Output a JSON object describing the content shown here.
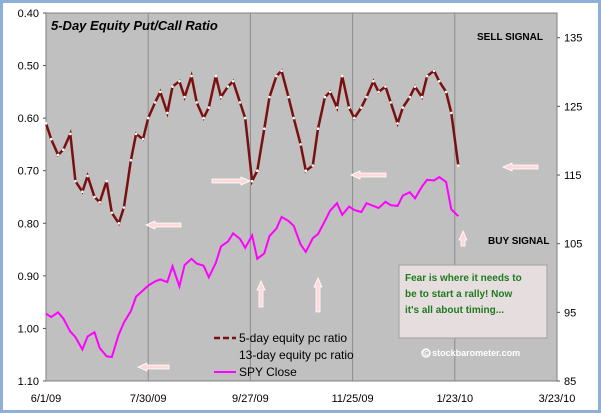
{
  "chart_data": {
    "type": "line",
    "title": "5-Day Equity Put/Call Ratio",
    "x_ticks": [
      "6/1/09",
      "7/30/09",
      "9/27/09",
      "11/25/09",
      "1/23/10",
      "3/23/10"
    ],
    "y_left": {
      "ticks": [
        "0.40",
        "0.50",
        "0.60",
        "0.70",
        "0.80",
        "0.90",
        "1.00",
        "1.10"
      ],
      "ylim": [
        1.1,
        0.4
      ],
      "inverted": true
    },
    "y_right": {
      "ticks": [
        "135",
        "125",
        "115",
        "105",
        "95",
        "85"
      ],
      "ylim": [
        85,
        138.6
      ]
    },
    "grid": "vertical",
    "annotations": {
      "sell": "SELL SIGNAL",
      "buy": "BUY SIGNAL",
      "source": "© stockbarometer.com"
    },
    "note_lines": [
      "Fear is where it needs to",
      "be to start a rally!  Now",
      "it's all about timing..."
    ],
    "legend_entries": [
      "5-day equity pc ratio",
      "13-day equity pc ratio",
      "SPY Close"
    ],
    "colors": {
      "pc": "#7a0f0f",
      "spy": "#ff00ff",
      "plot_bg": "#c0c0c0",
      "note_bg": "#e6dede",
      "arrow": "#ffd9d9"
    },
    "series": [
      {
        "name": "5-day equity pc ratio",
        "axis": "left",
        "x": [
          "2009-06-01",
          "2009-06-04",
          "2009-06-08",
          "2009-06-11",
          "2009-06-15",
          "2009-06-18",
          "2009-06-22",
          "2009-06-25",
          "2009-06-29",
          "2009-07-02",
          "2009-07-06",
          "2009-07-09",
          "2009-07-13",
          "2009-07-16",
          "2009-07-20",
          "2009-07-23",
          "2009-07-27",
          "2009-07-30",
          "2009-08-03",
          "2009-08-06",
          "2009-08-10",
          "2009-08-13",
          "2009-08-17",
          "2009-08-20",
          "2009-08-24",
          "2009-08-27",
          "2009-08-31",
          "2009-09-03",
          "2009-09-07",
          "2009-09-10",
          "2009-09-14",
          "2009-09-17",
          "2009-09-21",
          "2009-09-24",
          "2009-09-28",
          "2009-10-01",
          "2009-10-05",
          "2009-10-08",
          "2009-10-12",
          "2009-10-15",
          "2009-10-19",
          "2009-10-22",
          "2009-10-26",
          "2009-10-29",
          "2009-11-02",
          "2009-11-05",
          "2009-11-09",
          "2009-11-12",
          "2009-11-16",
          "2009-11-19",
          "2009-11-23",
          "2009-11-26",
          "2009-11-30",
          "2009-12-03",
          "2009-12-07",
          "2009-12-10",
          "2009-12-14",
          "2009-12-17",
          "2009-12-21",
          "2009-12-24",
          "2009-12-28",
          "2009-12-31",
          "2010-01-04",
          "2010-01-07",
          "2010-01-11",
          "2010-01-14",
          "2010-01-18",
          "2010-01-21",
          "2010-01-25"
        ],
        "values": [
          0.61,
          0.64,
          0.67,
          0.66,
          0.63,
          0.72,
          0.74,
          0.71,
          0.75,
          0.76,
          0.72,
          0.78,
          0.8,
          0.77,
          0.68,
          0.63,
          0.64,
          0.6,
          0.57,
          0.55,
          0.59,
          0.54,
          0.53,
          0.56,
          0.52,
          0.57,
          0.6,
          0.58,
          0.52,
          0.56,
          0.54,
          0.53,
          0.57,
          0.6,
          0.72,
          0.7,
          0.62,
          0.56,
          0.52,
          0.51,
          0.56,
          0.6,
          0.65,
          0.7,
          0.69,
          0.62,
          0.56,
          0.55,
          0.58,
          0.52,
          0.58,
          0.6,
          0.58,
          0.56,
          0.53,
          0.55,
          0.54,
          0.57,
          0.61,
          0.58,
          0.56,
          0.54,
          0.56,
          0.52,
          0.51,
          0.53,
          0.55,
          0.59,
          0.69
        ]
      },
      {
        "name": "SPY Close",
        "axis": "right",
        "x": [
          "2009-06-01",
          "2009-06-04",
          "2009-06-08",
          "2009-06-11",
          "2009-06-15",
          "2009-06-18",
          "2009-06-22",
          "2009-06-25",
          "2009-06-29",
          "2009-07-02",
          "2009-07-06",
          "2009-07-09",
          "2009-07-13",
          "2009-07-16",
          "2009-07-20",
          "2009-07-23",
          "2009-07-27",
          "2009-07-30",
          "2009-08-03",
          "2009-08-06",
          "2009-08-10",
          "2009-08-13",
          "2009-08-17",
          "2009-08-20",
          "2009-08-24",
          "2009-08-27",
          "2009-08-31",
          "2009-09-03",
          "2009-09-07",
          "2009-09-10",
          "2009-09-14",
          "2009-09-17",
          "2009-09-21",
          "2009-09-24",
          "2009-09-28",
          "2009-10-01",
          "2009-10-05",
          "2009-10-08",
          "2009-10-12",
          "2009-10-15",
          "2009-10-19",
          "2009-10-22",
          "2009-10-26",
          "2009-10-29",
          "2009-11-02",
          "2009-11-05",
          "2009-11-09",
          "2009-11-12",
          "2009-11-16",
          "2009-11-19",
          "2009-11-23",
          "2009-11-26",
          "2009-11-30",
          "2009-12-03",
          "2009-12-07",
          "2009-12-10",
          "2009-12-14",
          "2009-12-17",
          "2009-12-21",
          "2009-12-24",
          "2009-12-28",
          "2009-12-31",
          "2010-01-04",
          "2010-01-07",
          "2010-01-11",
          "2010-01-14",
          "2010-01-18",
          "2010-01-21",
          "2010-01-25"
        ],
        "values": [
          94.8,
          94.3,
          95,
          94.1,
          92.2,
          91.4,
          89.6,
          91.5,
          92.1,
          89.8,
          88.6,
          88.5,
          91.8,
          93.5,
          95.2,
          97.3,
          98.2,
          98.9,
          99.5,
          99.8,
          99.4,
          101.7,
          98.8,
          101.9,
          102.8,
          102.1,
          101.8,
          100.1,
          102.2,
          104.6,
          105.3,
          106.5,
          105.7,
          104.4,
          106.2,
          102.8,
          103.6,
          106.1,
          107.2,
          108.9,
          108.3,
          107.6,
          104.9,
          103.8,
          105.8,
          106.4,
          108.3,
          109.8,
          110.9,
          109.2,
          110.4,
          109.9,
          109.6,
          110.9,
          110.5,
          110.2,
          111.1,
          110.6,
          110.5,
          112,
          112.5,
          111.6,
          113.3,
          114.3,
          114.2,
          114.7,
          114,
          110,
          109
        ]
      }
    ]
  }
}
